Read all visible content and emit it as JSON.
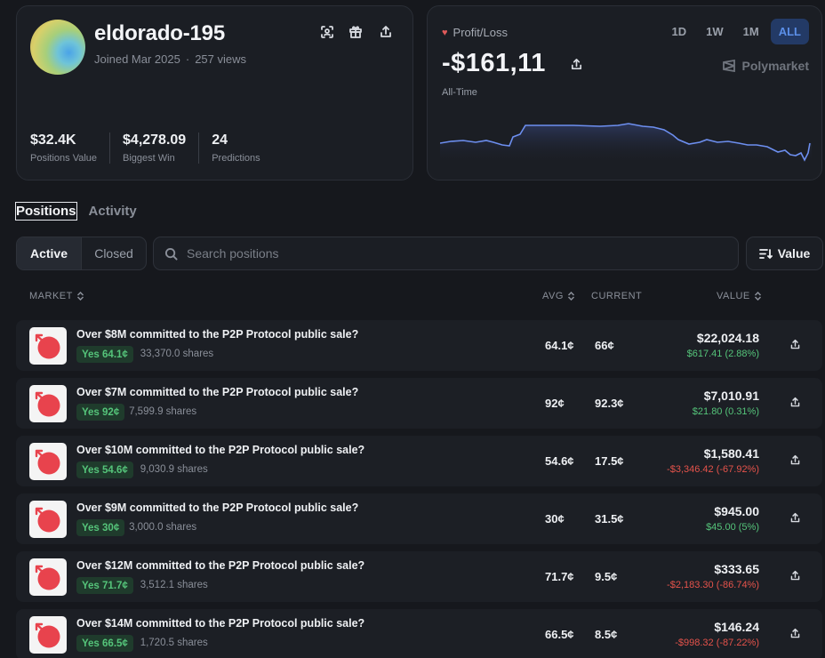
{
  "profile": {
    "username": "eldorado-195",
    "joined": "Joined Mar 2025",
    "views": "257 views",
    "stats": [
      {
        "value": "$32.4K",
        "label": "Positions Value"
      },
      {
        "value": "$4,278.09",
        "label": "Biggest Win"
      },
      {
        "value": "24",
        "label": "Predictions"
      }
    ],
    "icons": [
      "scan-icon",
      "gift-icon",
      "share-icon"
    ]
  },
  "pnl": {
    "label": "Profit/Loss",
    "value": "-$161,11",
    "period": "All-Time",
    "brand": "Polymarket",
    "ranges": [
      "1D",
      "1W",
      "1M",
      "ALL"
    ],
    "active_range": "ALL",
    "line_color": "#6d8ff0"
  },
  "tabs": [
    "Positions",
    "Activity"
  ],
  "filters": {
    "active": "Active",
    "closed": "Closed"
  },
  "search": {
    "placeholder": "Search positions"
  },
  "sort": {
    "label": "Value"
  },
  "columns": {
    "market": "MARKET",
    "avg": "AVG",
    "current": "CURRENT",
    "value": "VALUE"
  },
  "positions": [
    {
      "title": "Over $8M committed to the P2P Protocol public sale?",
      "outcome": "Yes 64.1¢",
      "shares": "33,370.0 shares",
      "avg": "64.1¢",
      "current": "66¢",
      "value": "$22,024.18",
      "pnl": "$617.41 (2.88%)",
      "pnl_sign": "pos"
    },
    {
      "title": "Over $7M committed to the P2P Protocol public sale?",
      "outcome": "Yes 92¢",
      "shares": "7,599.9 shares",
      "avg": "92¢",
      "current": "92.3¢",
      "value": "$7,010.91",
      "pnl": "$21.80 (0.31%)",
      "pnl_sign": "pos"
    },
    {
      "title": "Over $10M committed to the P2P Protocol public sale?",
      "outcome": "Yes 54.6¢",
      "shares": "9,030.9 shares",
      "avg": "54.6¢",
      "current": "17.5¢",
      "value": "$1,580.41",
      "pnl": "-$3,346.42 (-67.92%)",
      "pnl_sign": "neg"
    },
    {
      "title": "Over $9M committed to the P2P Protocol public sale?",
      "outcome": "Yes 30¢",
      "shares": "3,000.0 shares",
      "avg": "30¢",
      "current": "31.5¢",
      "value": "$945.00",
      "pnl": "$45.00 (5%)",
      "pnl_sign": "pos"
    },
    {
      "title": "Over $12M committed to the P2P Protocol public sale?",
      "outcome": "Yes 71.7¢",
      "shares": "3,512.1 shares",
      "avg": "71.7¢",
      "current": "9.5¢",
      "value": "$333.65",
      "pnl": "-$2,183.30 (-86.74%)",
      "pnl_sign": "neg"
    },
    {
      "title": "Over $14M committed to the P2P Protocol public sale?",
      "outcome": "Yes 66.5¢",
      "shares": "1,720.5 shares",
      "avg": "66.5¢",
      "current": "8.5¢",
      "value": "$146.24",
      "pnl": "-$998.32 (-87.22%)",
      "pnl_sign": "neg"
    }
  ]
}
